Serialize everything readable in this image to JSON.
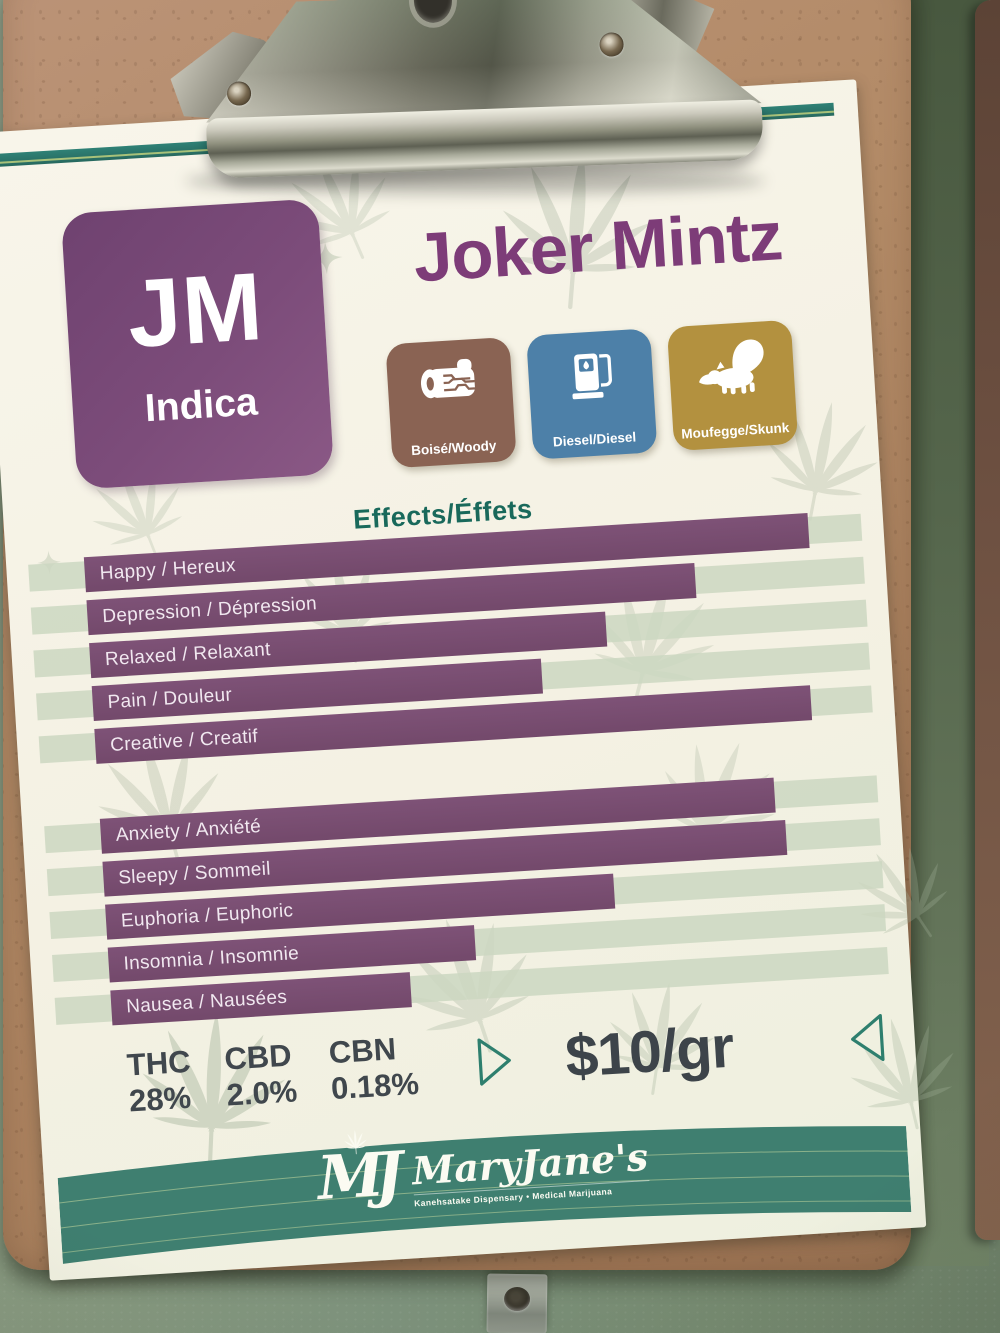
{
  "colors": {
    "wall": "#7c917b",
    "board": "#ad8561",
    "sheet": "#f6f3e7",
    "accent_teal": "#2e7b6e",
    "accent_purple": "#7d3c78",
    "bar_purple": "#7a4e73",
    "bar_track": "#cbd7c1",
    "stat_text": "#40474d",
    "footer_band": "#3f7f70"
  },
  "sheet": {
    "badge": {
      "code": "JM",
      "type": "Indica"
    },
    "title": "Joker Mintz",
    "flavors": [
      {
        "label": "Boisé/Woody",
        "icon": "log-icon",
        "color": "#8a6353"
      },
      {
        "label": "Diesel/Diesel",
        "icon": "fuel-pump-icon",
        "color": "#4d80a8"
      },
      {
        "label": "Moufegge/Skunk",
        "icon": "skunk-icon",
        "color": "#b3913f"
      }
    ],
    "effects_title": "Effects/Éffets",
    "effects_group1": [
      {
        "label": "Happy / Hereux",
        "percent": 87
      },
      {
        "label": "Depression / Dépression",
        "percent": 73
      },
      {
        "label": "Relaxed / Relaxant",
        "percent": 62
      },
      {
        "label": "Pain / Douleur",
        "percent": 54
      },
      {
        "label": "Creative / Creatif",
        "percent": 86
      }
    ],
    "effects_group2": [
      {
        "label": "Anxiety / Anxiété",
        "percent": 81
      },
      {
        "label": "Sleepy / Sommeil",
        "percent": 82
      },
      {
        "label": "Euphoria / Euphoric",
        "percent": 61
      },
      {
        "label": "Insomnia / Insomnie",
        "percent": 44
      },
      {
        "label": "Nausea / Nausées",
        "percent": 36
      }
    ],
    "stats": [
      {
        "label": "THC",
        "value": "28%"
      },
      {
        "label": "CBD",
        "value": "2.0%"
      },
      {
        "label": "CBN",
        "value": "0.18%"
      }
    ],
    "price": "$10/gr",
    "footer": {
      "monogram": "MJ",
      "brand": "MaryJane's",
      "tagline": "Kanehsatake Dispensary • Medical Marijuana"
    }
  },
  "chart_data": {
    "type": "bar",
    "title": "Effects/Éffets",
    "groups": [
      {
        "categories": [
          "Happy / Hereux",
          "Depression / Dépression",
          "Relaxed / Relaxant",
          "Pain / Douleur",
          "Creative / Creatif"
        ],
        "values_percent_est": [
          87,
          73,
          62,
          54,
          86
        ]
      },
      {
        "categories": [
          "Anxiety / Anxiété",
          "Sleepy / Sommeil",
          "Euphoria / Euphoric",
          "Insomnia / Insomnie",
          "Nausea / Nausées"
        ],
        "values_percent_est": [
          81,
          82,
          61,
          44,
          36
        ]
      }
    ],
    "bar_color": "#7a4e73",
    "track_color": "#cbd7c1",
    "legend": "none",
    "orientation": "horizontal"
  }
}
